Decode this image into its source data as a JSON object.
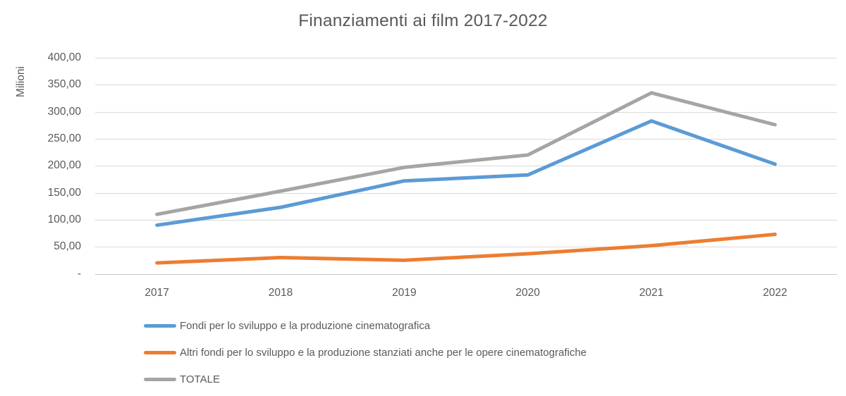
{
  "title": "Finanziamenti ai film 2017-2022",
  "y_axis": {
    "unit_label": "Milioni",
    "ticks": [
      "400,00",
      "350,00",
      "300,00",
      "250,00",
      "200,00",
      "150,00",
      "100,00",
      "50,00",
      "-"
    ]
  },
  "x_axis": {
    "labels": [
      "2017",
      "2018",
      "2019",
      "2020",
      "2021",
      "2022"
    ]
  },
  "colors": {
    "series_fondi": "#5B9BD5",
    "series_altri_fondi": "#ED7D31",
    "series_totale": "#A5A5A5",
    "text": "#595959",
    "gridline": "#D9D9D9",
    "axis_line": "#C6C6C6",
    "background": "#FFFFFF"
  },
  "chart_data": {
    "type": "line",
    "title": "Finanziamenti ai film 2017-2022",
    "unit_label": "Milioni",
    "categories": [
      "2017",
      "2018",
      "2019",
      "2020",
      "2021",
      "2022"
    ],
    "series": [
      {
        "id": "fondi",
        "name": "Fondi per lo sviluppo e la produzione cinematografica",
        "color": "#5B9BD5",
        "values": [
          90,
          123,
          172,
          183,
          283,
          203
        ]
      },
      {
        "id": "altri-fondi",
        "name": "Altri fondi per lo sviluppo e la produzione stanziati anche per le opere cinematografiche",
        "color": "#ED7D31",
        "values": [
          20,
          30,
          25,
          37,
          52,
          73
        ]
      },
      {
        "id": "totale",
        "name": "TOTALE",
        "color": "#A5A5A5",
        "values": [
          110,
          153,
          197,
          220,
          335,
          276
        ]
      }
    ],
    "ylim": [
      0,
      400
    ],
    "y_tick_step": 50,
    "xlabel": "",
    "ylabel": "Milioni",
    "grid": true,
    "legend_position": "bottom-left"
  }
}
